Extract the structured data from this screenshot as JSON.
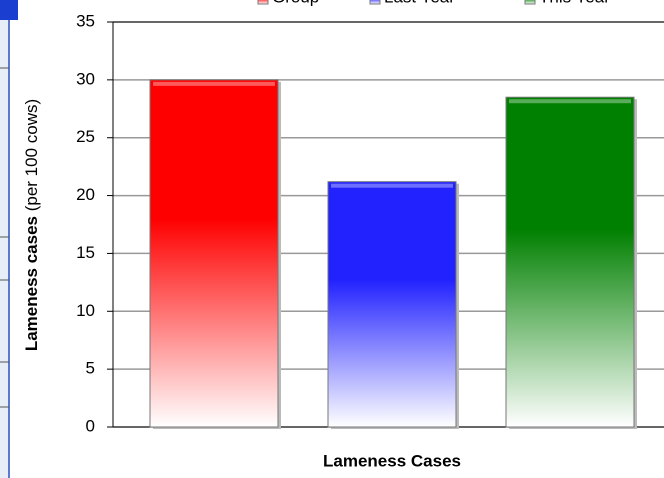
{
  "chart_data": {
    "type": "bar",
    "categories": [
      "Lameness Cases"
    ],
    "y_label": {
      "main": "Lameness cases",
      "unit": "(per 100 cows)"
    },
    "series": [
      {
        "name": "Group",
        "color": "#ff0000",
        "values": [
          30
        ]
      },
      {
        "name": "Last Year",
        "color": "#2222ff",
        "values": [
          21.2
        ]
      },
      {
        "name": "This Year",
        "color": "#008000",
        "values": [
          28.5
        ]
      }
    ],
    "ylim": [
      0,
      35
    ],
    "yticks": [
      0,
      5,
      10,
      15,
      20,
      25,
      30,
      35
    ],
    "grid": true,
    "legend": "top"
  }
}
